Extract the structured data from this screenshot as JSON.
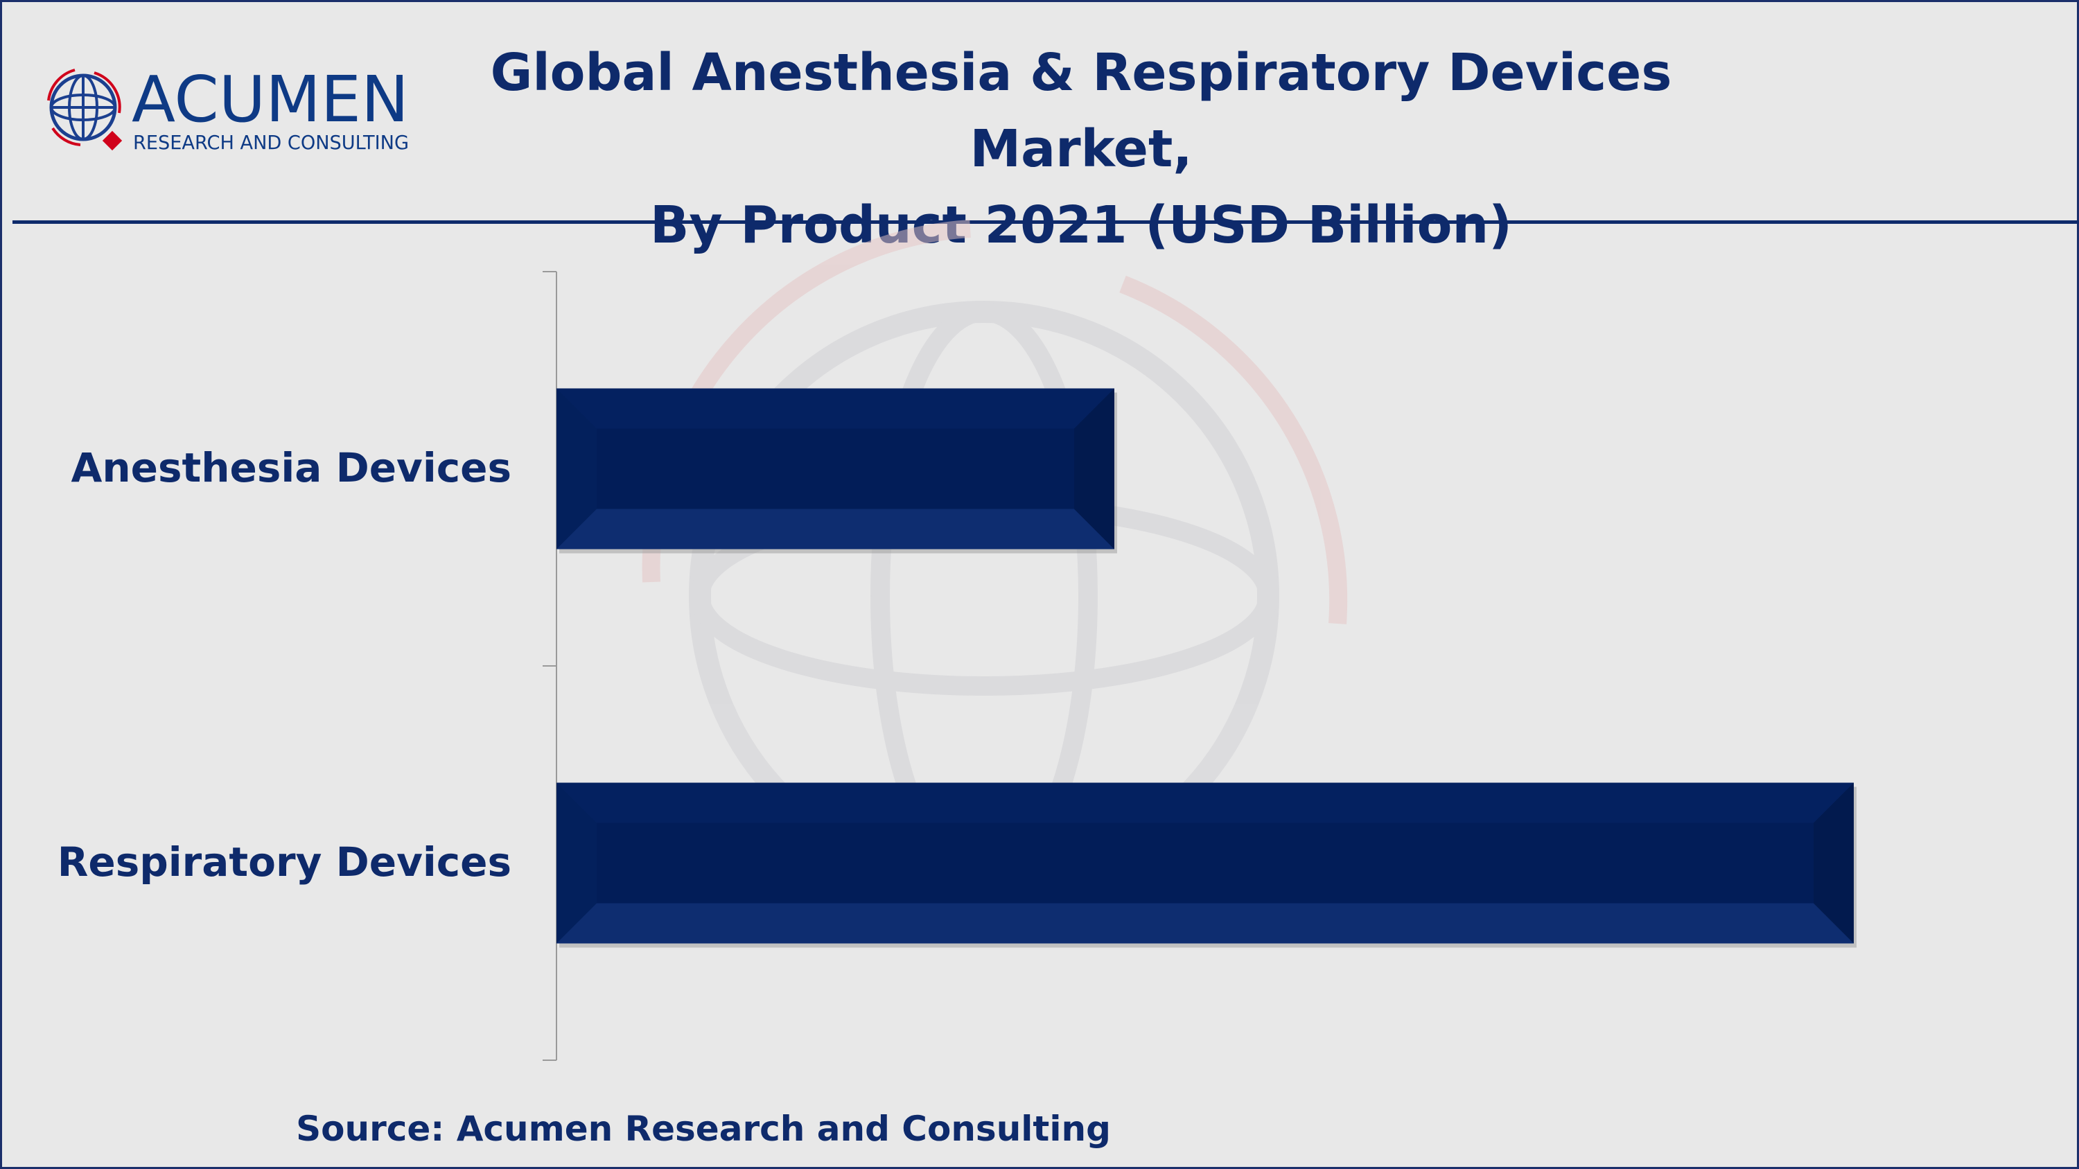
{
  "logo": {
    "name": "ACUMEN",
    "tagline": "RESEARCH AND CONSULTING"
  },
  "title_line1": "Global Anesthesia & Respiratory Devices Market,",
  "title_line2": "By Product 2021 (USD Billion)",
  "source": "Source: Acumen Research and Consulting",
  "colors": {
    "bar": "#03205c",
    "bar_light": "#0e2d70",
    "text": "#0e2a6b",
    "accent": "#d0021b"
  },
  "chart_data": {
    "type": "bar",
    "orientation": "horizontal",
    "title": "Global Anesthesia & Respiratory Devices Market, By Product 2021 (USD Billion)",
    "categories": [
      "Anesthesia Devices",
      "Respiratory Devices"
    ],
    "values": [
      43,
      100
    ],
    "value_note": "relative bar lengths; no values printed",
    "xlabel": "",
    "ylabel": "",
    "xlim": [
      0,
      100
    ],
    "grid": false,
    "legend": "none"
  }
}
